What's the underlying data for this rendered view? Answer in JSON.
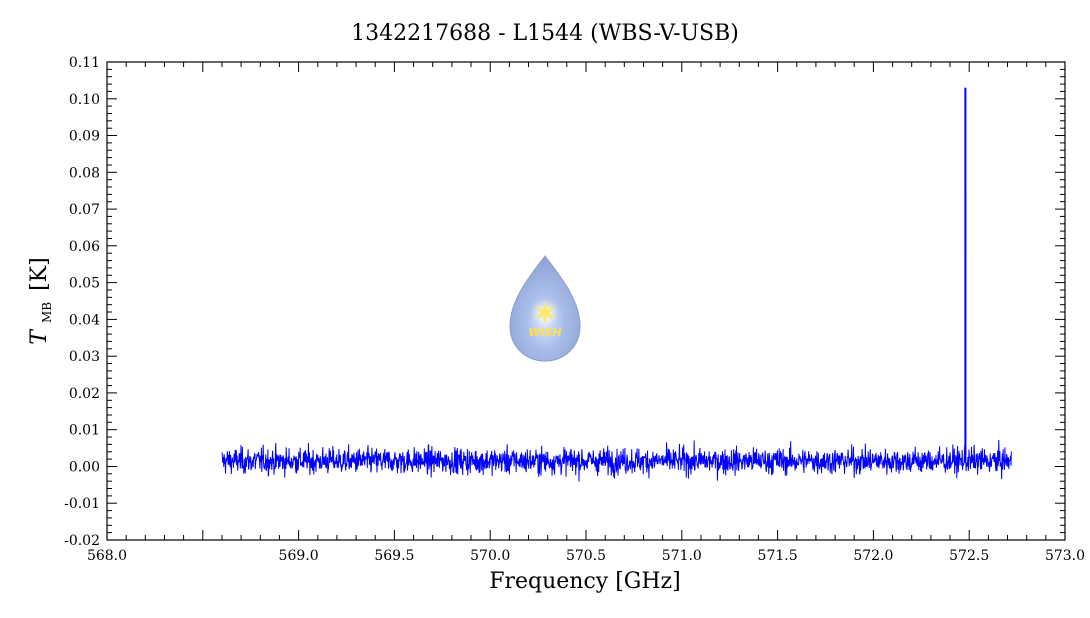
{
  "chart_data": {
    "type": "line",
    "title": "1342217688 - L1544 (WBS-V-USB)",
    "xlabel": "Frequency [GHz]",
    "ylabel_main": "T",
    "ylabel_sub": "MB",
    "ylabel_unit": "[K]",
    "xlim": [
      568.0,
      573.0
    ],
    "ylim": [
      -0.02,
      0.11
    ],
    "x_ticks": [
      "568.0",
      "569.0",
      "569.5",
      "570.0",
      "570.5",
      "571.0",
      "571.5",
      "572.0",
      "572.5",
      "573.0"
    ],
    "x_tick_values": [
      568.0,
      569.0,
      569.5,
      570.0,
      570.5,
      571.0,
      571.5,
      572.0,
      572.5,
      573.0
    ],
    "y_ticks": [
      "0.11",
      "0.10",
      "0.09",
      "0.08",
      "0.07",
      "0.06",
      "0.05",
      "0.04",
      "0.03",
      "0.02",
      "0.01",
      "0.00",
      "-0.01",
      "-0.02"
    ],
    "y_tick_values": [
      0.11,
      0.1,
      0.09,
      0.08,
      0.07,
      0.06,
      0.05,
      0.04,
      0.03,
      0.02,
      0.01,
      0.0,
      -0.01,
      -0.02
    ],
    "series": [
      {
        "color": "#0000ff",
        "x_start": 568.6,
        "x_end": 572.72,
        "baseline": 0.0015,
        "noise_rms": 0.0025,
        "peak": {
          "x": 572.48,
          "y": 0.103
        }
      }
    ],
    "grid": false,
    "legend": "none"
  },
  "logo": {
    "text": "WISH"
  }
}
